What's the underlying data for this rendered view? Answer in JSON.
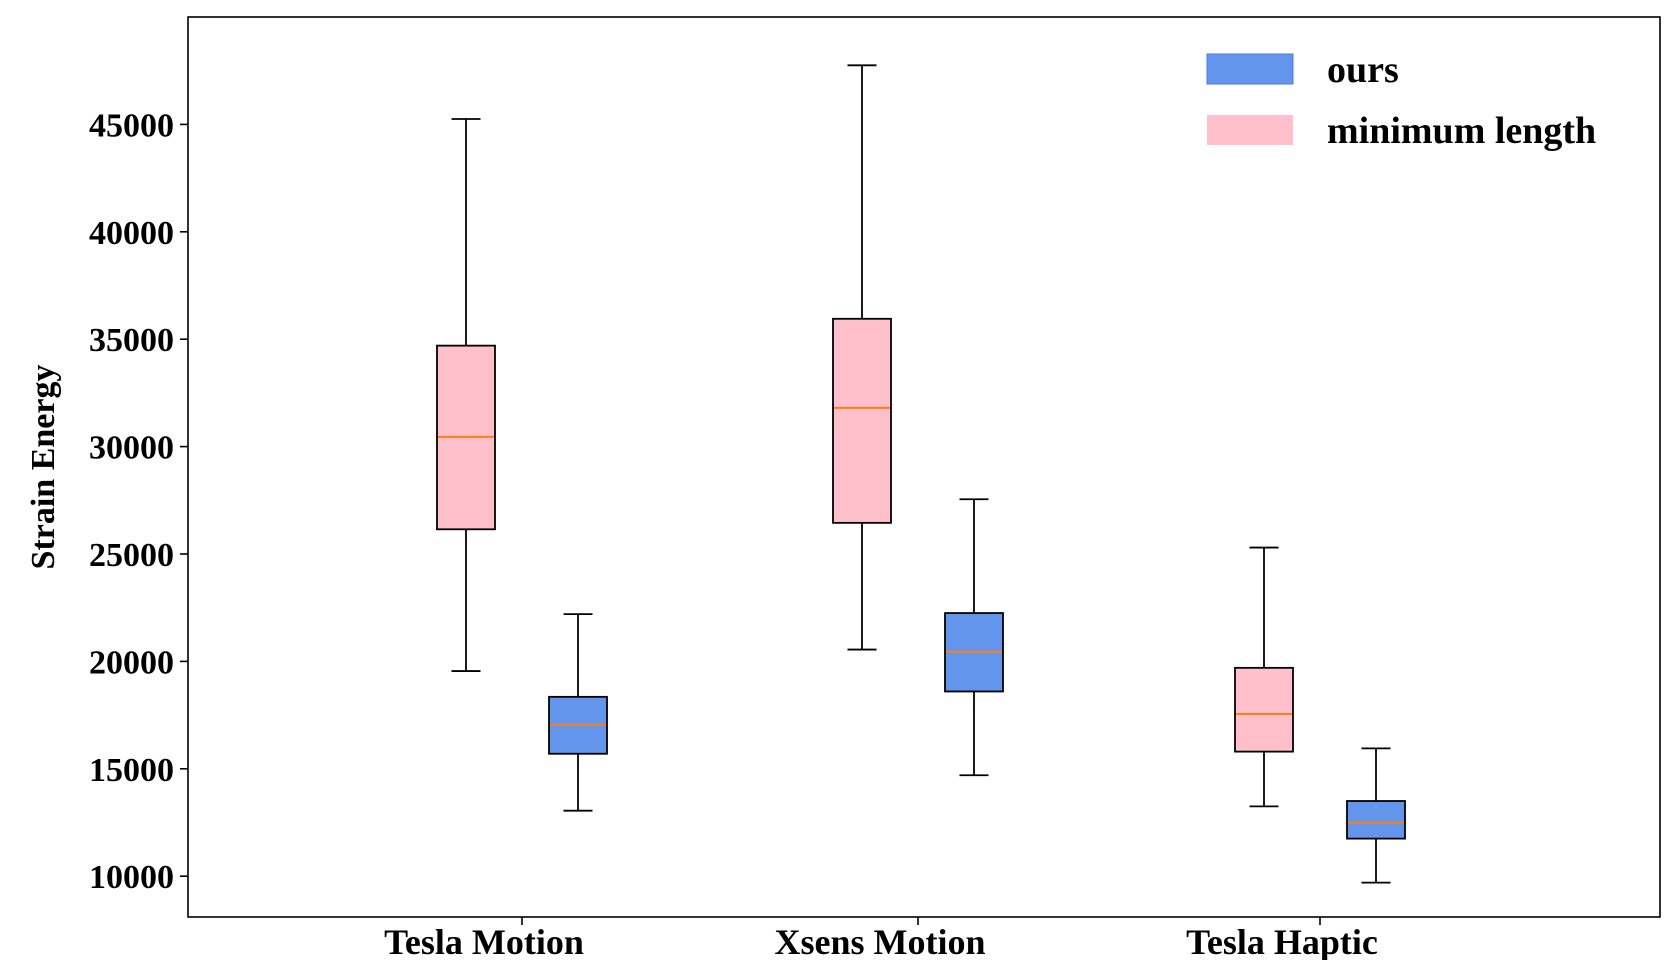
{
  "chart_data": {
    "type": "box",
    "ylabel": "Strain Energy",
    "xlabel": "",
    "title": "",
    "categories": [
      "Tesla Motion",
      "Xsens Motion",
      "Tesla Haptic"
    ],
    "yticks": [
      10000,
      15000,
      20000,
      25000,
      30000,
      35000,
      40000,
      45000
    ],
    "ytick_labels": [
      "10000",
      "15000",
      "20000",
      "25000",
      "30000",
      "35000",
      "40000",
      "45000"
    ],
    "ylim": [
      8100,
      50000
    ],
    "grid": false,
    "legend_position": "top-right",
    "series": [
      {
        "name": "minimum length",
        "color": "#ffc0cb",
        "median_color": "#ff7f0e",
        "boxes": [
          {
            "whisker_low": 19550,
            "q1": 26150,
            "median": 30450,
            "q3": 34700,
            "whisker_high": 45250
          },
          {
            "whisker_low": 20550,
            "q1": 26450,
            "median": 31800,
            "q3": 35950,
            "whisker_high": 47750
          },
          {
            "whisker_low": 13250,
            "q1": 15800,
            "median": 17550,
            "q3": 19700,
            "whisker_high": 25300
          }
        ]
      },
      {
        "name": "ours",
        "color": "#6495ed",
        "median_color": "#ff7f0e",
        "boxes": [
          {
            "whisker_low": 13050,
            "q1": 15700,
            "median": 17050,
            "q3": 18350,
            "whisker_high": 22200
          },
          {
            "whisker_low": 14700,
            "q1": 18600,
            "median": 20450,
            "q3": 22250,
            "whisker_high": 27550
          },
          {
            "whisker_low": 9700,
            "q1": 11750,
            "median": 12500,
            "q3": 13500,
            "whisker_high": 15950
          }
        ]
      }
    ],
    "legend": [
      {
        "label": "ours",
        "color": "#6495ed"
      },
      {
        "label": "minimum length",
        "color": "#ffc0cb"
      }
    ]
  }
}
